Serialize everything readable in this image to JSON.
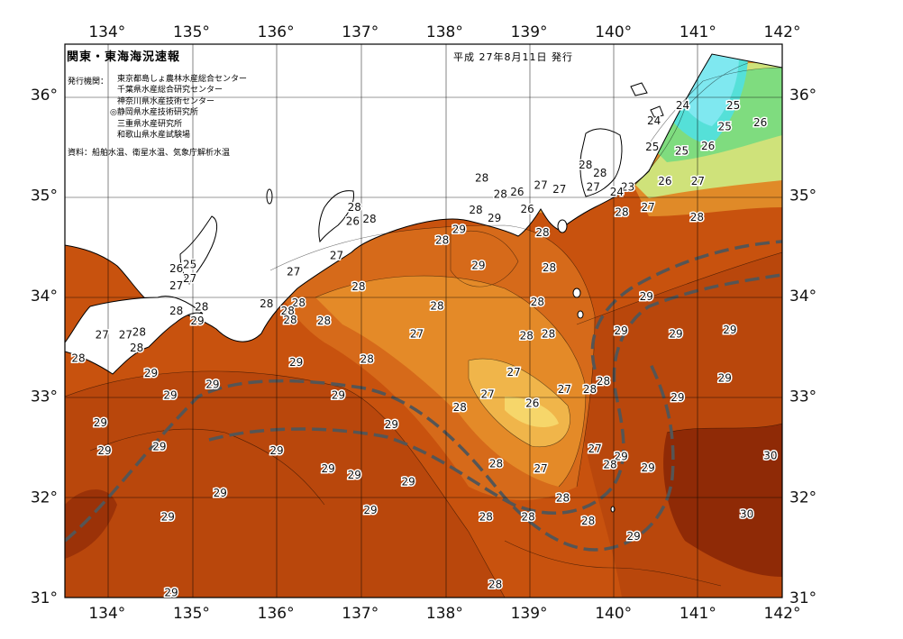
{
  "map": {
    "title": "関東・東海海況速報",
    "date": "平成 27年8月11日 発行",
    "issuer_label": "発行機関：",
    "issuers": [
      "東京都島しょ農林水産総合センター",
      "千葉県水産総合研究センター",
      "神奈川県水産技術センター",
      "◎静岡県水産技術研究所",
      "三重県水産研究所",
      "和歌山県水産試験場"
    ],
    "source": "資料：船舶水温、衛星水温、気象庁解析水温",
    "lon_labels": [
      "134°",
      "135°",
      "136°",
      "137°",
      "138°",
      "139°",
      "140°",
      "141°",
      "142°"
    ],
    "lat_labels": [
      "36°",
      "35°",
      "34°",
      "33°",
      "32°",
      "31°"
    ],
    "isotherm_labels": [
      {
        "t": "24",
        "lon": 140.82,
        "lat": 35.89
      },
      {
        "t": "25",
        "lon": 141.42,
        "lat": 35.89
      },
      {
        "t": "24",
        "lon": 140.48,
        "lat": 35.74
      },
      {
        "t": "26",
        "lon": 141.74,
        "lat": 35.72
      },
      {
        "t": "25",
        "lon": 141.32,
        "lat": 35.68
      },
      {
        "t": "25",
        "lon": 140.46,
        "lat": 35.48
      },
      {
        "t": "26",
        "lon": 141.12,
        "lat": 35.49
      },
      {
        "t": "25",
        "lon": 140.81,
        "lat": 35.44
      },
      {
        "t": "28",
        "lon": 139.67,
        "lat": 35.3
      },
      {
        "t": "28",
        "lon": 139.84,
        "lat": 35.22
      },
      {
        "t": "26",
        "lon": 140.61,
        "lat": 35.14
      },
      {
        "t": "28",
        "lon": 138.44,
        "lat": 35.17
      },
      {
        "t": "27",
        "lon": 139.14,
        "lat": 35.1
      },
      {
        "t": "27",
        "lon": 139.36,
        "lat": 35.06
      },
      {
        "t": "27",
        "lon": 139.76,
        "lat": 35.08
      },
      {
        "t": "23",
        "lon": 140.17,
        "lat": 35.08
      },
      {
        "t": "24",
        "lon": 140.04,
        "lat": 35.03
      },
      {
        "t": "27",
        "lon": 141.0,
        "lat": 35.14
      },
      {
        "t": "28",
        "lon": 138.66,
        "lat": 35.01
      },
      {
        "t": "26",
        "lon": 138.86,
        "lat": 35.03
      },
      {
        "t": "27",
        "lon": 140.41,
        "lat": 34.88
      },
      {
        "t": "28",
        "lon": 136.93,
        "lat": 34.88
      },
      {
        "t": "28",
        "lon": 138.37,
        "lat": 34.85
      },
      {
        "t": "26",
        "lon": 138.98,
        "lat": 34.86
      },
      {
        "t": "28",
        "lon": 140.1,
        "lat": 34.83
      },
      {
        "t": "26",
        "lon": 136.91,
        "lat": 34.74
      },
      {
        "t": "28",
        "lon": 137.11,
        "lat": 34.76
      },
      {
        "t": "29",
        "lon": 138.59,
        "lat": 34.77
      },
      {
        "t": "28",
        "lon": 140.99,
        "lat": 34.78
      },
      {
        "t": "29",
        "lon": 138.17,
        "lat": 34.66
      },
      {
        "t": "28",
        "lon": 139.16,
        "lat": 34.63
      },
      {
        "t": "28",
        "lon": 137.97,
        "lat": 34.55
      },
      {
        "t": "27",
        "lon": 136.72,
        "lat": 34.4
      },
      {
        "t": "25",
        "lon": 134.98,
        "lat": 34.31
      },
      {
        "t": "26",
        "lon": 134.82,
        "lat": 34.27
      },
      {
        "t": "29",
        "lon": 138.4,
        "lat": 34.3
      },
      {
        "t": "28",
        "lon": 139.24,
        "lat": 34.28
      },
      {
        "t": "27",
        "lon": 136.21,
        "lat": 34.24
      },
      {
        "t": "27",
        "lon": 134.98,
        "lat": 34.17
      },
      {
        "t": "27",
        "lon": 134.82,
        "lat": 34.1
      },
      {
        "t": "28",
        "lon": 136.98,
        "lat": 34.09
      },
      {
        "t": "28",
        "lon": 136.27,
        "lat": 33.93
      },
      {
        "t": "28",
        "lon": 135.12,
        "lat": 33.89
      },
      {
        "t": "28",
        "lon": 134.82,
        "lat": 33.85
      },
      {
        "t": "28",
        "lon": 135.89,
        "lat": 33.92
      },
      {
        "t": "28",
        "lon": 136.14,
        "lat": 33.85
      },
      {
        "t": "28",
        "lon": 137.91,
        "lat": 33.9
      },
      {
        "t": "28",
        "lon": 139.1,
        "lat": 33.94
      },
      {
        "t": "29",
        "lon": 140.39,
        "lat": 33.99
      },
      {
        "t": "29",
        "lon": 135.07,
        "lat": 33.75
      },
      {
        "t": "28",
        "lon": 136.17,
        "lat": 33.76
      },
      {
        "t": "28",
        "lon": 136.57,
        "lat": 33.75
      },
      {
        "t": "27",
        "lon": 133.94,
        "lat": 33.61
      },
      {
        "t": "28",
        "lon": 134.38,
        "lat": 33.64
      },
      {
        "t": "27",
        "lon": 134.22,
        "lat": 33.61
      },
      {
        "t": "29",
        "lon": 140.09,
        "lat": 33.65
      },
      {
        "t": "29",
        "lon": 140.74,
        "lat": 33.62
      },
      {
        "t": "29",
        "lon": 141.38,
        "lat": 33.66
      },
      {
        "t": "27",
        "lon": 137.67,
        "lat": 33.62
      },
      {
        "t": "28",
        "lon": 138.97,
        "lat": 33.6
      },
      {
        "t": "28",
        "lon": 139.23,
        "lat": 33.62
      },
      {
        "t": "28",
        "lon": 134.35,
        "lat": 33.48
      },
      {
        "t": "28",
        "lon": 133.66,
        "lat": 33.38
      },
      {
        "t": "29",
        "lon": 136.24,
        "lat": 33.34
      },
      {
        "t": "28",
        "lon": 137.08,
        "lat": 33.37
      },
      {
        "t": "29",
        "lon": 134.52,
        "lat": 33.23
      },
      {
        "t": "27",
        "lon": 138.82,
        "lat": 33.24
      },
      {
        "t": "29",
        "lon": 141.32,
        "lat": 33.18
      },
      {
        "t": "29",
        "lon": 135.25,
        "lat": 33.12
      },
      {
        "t": "28",
        "lon": 139.88,
        "lat": 33.15
      },
      {
        "t": "27",
        "lon": 139.42,
        "lat": 33.07
      },
      {
        "t": "28",
        "lon": 139.72,
        "lat": 33.07
      },
      {
        "t": "29",
        "lon": 134.75,
        "lat": 33.01
      },
      {
        "t": "29",
        "lon": 136.74,
        "lat": 33.01
      },
      {
        "t": "27",
        "lon": 138.51,
        "lat": 33.02
      },
      {
        "t": "29",
        "lon": 140.76,
        "lat": 32.99
      },
      {
        "t": "28",
        "lon": 138.18,
        "lat": 32.89
      },
      {
        "t": "26",
        "lon": 139.04,
        "lat": 32.93
      },
      {
        "t": "29",
        "lon": 133.92,
        "lat": 32.74
      },
      {
        "t": "29",
        "lon": 137.37,
        "lat": 32.72
      },
      {
        "t": "27",
        "lon": 139.78,
        "lat": 32.48
      },
      {
        "t": "29",
        "lon": 134.62,
        "lat": 32.5
      },
      {
        "t": "29",
        "lon": 133.97,
        "lat": 32.46
      },
      {
        "t": "29",
        "lon": 136.01,
        "lat": 32.46
      },
      {
        "t": "29",
        "lon": 140.09,
        "lat": 32.4
      },
      {
        "t": "30",
        "lon": 141.86,
        "lat": 32.41
      },
      {
        "t": "28",
        "lon": 138.61,
        "lat": 32.33
      },
      {
        "t": "28",
        "lon": 139.96,
        "lat": 32.32
      },
      {
        "t": "29",
        "lon": 136.62,
        "lat": 32.28
      },
      {
        "t": "27",
        "lon": 139.14,
        "lat": 32.28
      },
      {
        "t": "29",
        "lon": 140.41,
        "lat": 32.29
      },
      {
        "t": "29",
        "lon": 136.93,
        "lat": 32.22
      },
      {
        "t": "29",
        "lon": 137.57,
        "lat": 32.15
      },
      {
        "t": "29",
        "lon": 135.34,
        "lat": 32.04
      },
      {
        "t": "28",
        "lon": 139.4,
        "lat": 31.99
      },
      {
        "t": "29",
        "lon": 137.12,
        "lat": 31.87
      },
      {
        "t": "30",
        "lon": 141.58,
        "lat": 31.83
      },
      {
        "t": "29",
        "lon": 134.72,
        "lat": 31.8
      },
      {
        "t": "28",
        "lon": 138.49,
        "lat": 31.8
      },
      {
        "t": "28",
        "lon": 138.99,
        "lat": 31.8
      },
      {
        "t": "28",
        "lon": 139.7,
        "lat": 31.76
      },
      {
        "t": "29",
        "lon": 140.24,
        "lat": 31.61
      },
      {
        "t": "28",
        "lon": 138.6,
        "lat": 31.13
      },
      {
        "t": "29",
        "lon": 134.76,
        "lat": 31.05
      }
    ]
  }
}
